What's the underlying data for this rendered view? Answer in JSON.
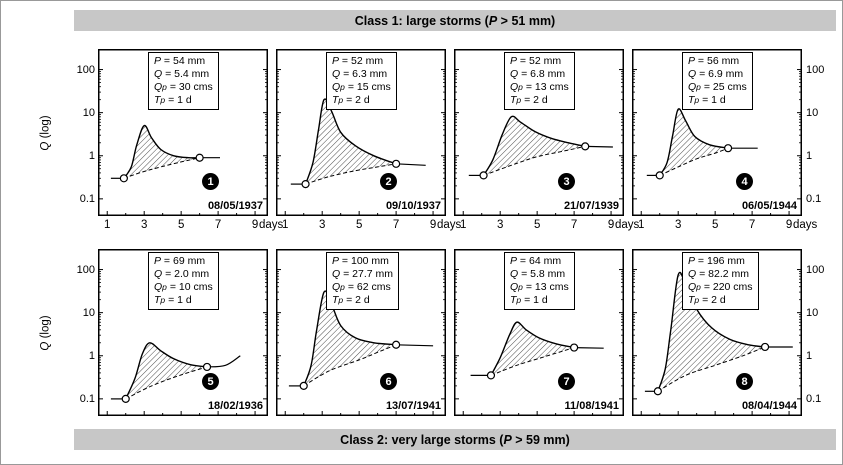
{
  "banners": {
    "top": {
      "prefix": "Class 1: large storms (",
      "var": "P",
      "suffix": " > 51 mm)"
    },
    "bottom": {
      "prefix": "Class 2: very large storms (",
      "var": "P",
      "suffix": " > 59 mm)"
    }
  },
  "axes": {
    "y_label": {
      "var": "Q",
      "suffix": " (log)"
    },
    "y_ticks": [
      "100",
      "10",
      "1",
      "0.1"
    ],
    "x_ticks": [
      "1",
      "3",
      "5",
      "7",
      "9"
    ],
    "x_unit": "days"
  },
  "chart_data": {
    "type": "line",
    "y_scale": "log",
    "x_range_days": [
      1,
      9
    ],
    "y_range": [
      0.1,
      100
    ],
    "legend": "hatched area = storm runoff between hydrograph and dashed baseflow separation; open circles mark start and end of event",
    "panels": [
      {
        "number": "1",
        "date": "08/05/1937",
        "stats": [
          {
            "main": "P",
            "sub": "",
            "value": "= 54 mm"
          },
          {
            "main": "Q",
            "sub": "",
            "value": "= 5.4 mm"
          },
          {
            "main": "Q",
            "sub": "p",
            "value": "= 30 cms"
          },
          {
            "main": "T",
            "sub": "p",
            "value": "= 1 d"
          }
        ],
        "lead": [
          [
            1.2,
            0.3
          ],
          [
            1.9,
            0.3
          ]
        ],
        "curve": [
          [
            1.9,
            0.3
          ],
          [
            2.3,
            0.55
          ],
          [
            2.6,
            1.8
          ],
          [
            3.0,
            5.0
          ],
          [
            3.4,
            2.6
          ],
          [
            3.9,
            1.4
          ],
          [
            4.6,
            1.0
          ],
          [
            5.4,
            0.9
          ],
          [
            6.0,
            0.9
          ]
        ],
        "baseflow": [
          [
            1.9,
            0.3
          ],
          [
            2.9,
            0.42
          ],
          [
            3.9,
            0.55
          ],
          [
            5.0,
            0.72
          ],
          [
            6.0,
            0.9
          ]
        ],
        "tail": [
          [
            6.0,
            0.9
          ],
          [
            7.1,
            0.9
          ]
        ]
      },
      {
        "number": "2",
        "date": "09/10/1937",
        "stats": [
          {
            "main": "P",
            "sub": "",
            "value": "= 52 mm"
          },
          {
            "main": "Q",
            "sub": "",
            "value": "= 6.3 mm"
          },
          {
            "main": "Q",
            "sub": "p",
            "value": "= 15 cms"
          },
          {
            "main": "T",
            "sub": "p",
            "value": "= 2 d"
          }
        ],
        "lead": [
          [
            1.3,
            0.22
          ],
          [
            2.1,
            0.22
          ]
        ],
        "curve": [
          [
            2.1,
            0.22
          ],
          [
            2.5,
            0.7
          ],
          [
            2.8,
            4.0
          ],
          [
            3.1,
            20.0
          ],
          [
            3.5,
            11.0
          ],
          [
            4.0,
            3.5
          ],
          [
            4.8,
            1.7
          ],
          [
            5.8,
            1.0
          ],
          [
            7.0,
            0.65
          ]
        ],
        "baseflow": [
          [
            2.1,
            0.22
          ],
          [
            3.4,
            0.33
          ],
          [
            4.8,
            0.45
          ],
          [
            6.0,
            0.55
          ],
          [
            7.0,
            0.65
          ]
        ],
        "tail": [
          [
            7.0,
            0.65
          ],
          [
            8.6,
            0.6
          ]
        ]
      },
      {
        "number": "3",
        "date": "21/07/1939",
        "stats": [
          {
            "main": "P",
            "sub": "",
            "value": "= 52 mm"
          },
          {
            "main": "Q",
            "sub": "",
            "value": "= 6.8 mm"
          },
          {
            "main": "Q",
            "sub": "p",
            "value": "= 13 cms"
          },
          {
            "main": "T",
            "sub": "p",
            "value": "= 2 d"
          }
        ],
        "lead": [
          [
            1.3,
            0.35
          ],
          [
            2.1,
            0.35
          ]
        ],
        "curve": [
          [
            2.1,
            0.35
          ],
          [
            2.6,
            0.8
          ],
          [
            3.1,
            3.0
          ],
          [
            3.6,
            8.0
          ],
          [
            4.1,
            6.0
          ],
          [
            4.9,
            3.6
          ],
          [
            5.8,
            2.5
          ],
          [
            6.7,
            2.0
          ],
          [
            7.6,
            1.65
          ]
        ],
        "baseflow": [
          [
            2.1,
            0.35
          ],
          [
            3.6,
            0.6
          ],
          [
            5.0,
            0.95
          ],
          [
            6.5,
            1.3
          ],
          [
            7.6,
            1.65
          ]
        ],
        "tail": [
          [
            7.6,
            1.65
          ],
          [
            9.1,
            1.6
          ]
        ]
      },
      {
        "number": "4",
        "date": "06/05/1944",
        "stats": [
          {
            "main": "P",
            "sub": "",
            "value": "= 56 mm"
          },
          {
            "main": "Q",
            "sub": "",
            "value": "= 6.9 mm"
          },
          {
            "main": "Q",
            "sub": "p",
            "value": "= 25 cms"
          },
          {
            "main": "T",
            "sub": "p",
            "value": "= 1 d"
          }
        ],
        "lead": [
          [
            1.3,
            0.35
          ],
          [
            2.0,
            0.35
          ]
        ],
        "curve": [
          [
            2.0,
            0.35
          ],
          [
            2.4,
            0.7
          ],
          [
            2.7,
            3.0
          ],
          [
            3.0,
            12.0
          ],
          [
            3.4,
            6.5
          ],
          [
            3.9,
            2.8
          ],
          [
            4.7,
            1.8
          ],
          [
            5.7,
            1.5
          ]
        ],
        "baseflow": [
          [
            2.0,
            0.35
          ],
          [
            3.0,
            0.55
          ],
          [
            4.0,
            0.85
          ],
          [
            5.0,
            1.15
          ],
          [
            5.7,
            1.5
          ]
        ],
        "tail": [
          [
            5.7,
            1.5
          ],
          [
            7.3,
            1.5
          ]
        ]
      },
      {
        "number": "5",
        "date": "18/02/1936",
        "stats": [
          {
            "main": "P",
            "sub": "",
            "value": "= 69 mm"
          },
          {
            "main": "Q",
            "sub": "",
            "value": "= 2.0 mm"
          },
          {
            "main": "Q",
            "sub": "p",
            "value": "= 10 cms"
          },
          {
            "main": "T",
            "sub": "p",
            "value": "= 1 d"
          }
        ],
        "lead": [
          [
            1.2,
            0.1
          ],
          [
            2.0,
            0.1
          ]
        ],
        "curve": [
          [
            2.0,
            0.1
          ],
          [
            2.5,
            0.3
          ],
          [
            2.9,
            1.1
          ],
          [
            3.3,
            2.0
          ],
          [
            3.9,
            1.3
          ],
          [
            4.6,
            0.85
          ],
          [
            5.5,
            0.62
          ],
          [
            6.4,
            0.55
          ]
        ],
        "baseflow": [
          [
            2.0,
            0.1
          ],
          [
            3.4,
            0.2
          ],
          [
            5.0,
            0.36
          ],
          [
            6.4,
            0.55
          ]
        ],
        "tail": [
          [
            6.4,
            0.55
          ],
          [
            7.4,
            0.6
          ],
          [
            8.2,
            1.0
          ]
        ]
      },
      {
        "number": "6",
        "date": "13/07/1941",
        "stats": [
          {
            "main": "P",
            "sub": "",
            "value": "= 100 mm"
          },
          {
            "main": "Q",
            "sub": "",
            "value": "= 27.7 mm"
          },
          {
            "main": "Q",
            "sub": "p",
            "value": "= 62 cms"
          },
          {
            "main": "T",
            "sub": "p",
            "value": "= 2 d"
          }
        ],
        "lead": [
          [
            1.2,
            0.2
          ],
          [
            2.0,
            0.2
          ]
        ],
        "curve": [
          [
            2.0,
            0.2
          ],
          [
            2.4,
            0.6
          ],
          [
            2.7,
            4.0
          ],
          [
            3.1,
            30.0
          ],
          [
            3.5,
            16.0
          ],
          [
            4.0,
            5.0
          ],
          [
            4.8,
            2.6
          ],
          [
            5.8,
            2.0
          ],
          [
            7.0,
            1.8
          ]
        ],
        "baseflow": [
          [
            2.0,
            0.2
          ],
          [
            3.4,
            0.45
          ],
          [
            5.0,
            0.8
          ],
          [
            6.0,
            1.2
          ],
          [
            7.0,
            1.8
          ]
        ],
        "tail": [
          [
            7.0,
            1.8
          ],
          [
            9.0,
            1.7
          ]
        ]
      },
      {
        "number": "7",
        "date": "11/08/1941",
        "stats": [
          {
            "main": "P",
            "sub": "",
            "value": "= 64 mm"
          },
          {
            "main": "Q",
            "sub": "",
            "value": "= 5.8 mm"
          },
          {
            "main": "Q",
            "sub": "p",
            "value": "= 13 cms"
          },
          {
            "main": "T",
            "sub": "p",
            "value": "= 1 d"
          }
        ],
        "lead": [
          [
            1.4,
            0.35
          ],
          [
            2.5,
            0.35
          ]
        ],
        "curve": [
          [
            2.5,
            0.35
          ],
          [
            3.0,
            0.9
          ],
          [
            3.5,
            3.0
          ],
          [
            3.9,
            6.0
          ],
          [
            4.4,
            4.0
          ],
          [
            5.1,
            2.6
          ],
          [
            6.0,
            1.9
          ],
          [
            7.0,
            1.55
          ]
        ],
        "baseflow": [
          [
            2.5,
            0.35
          ],
          [
            3.9,
            0.6
          ],
          [
            5.4,
            0.95
          ],
          [
            7.0,
            1.55
          ]
        ],
        "tail": [
          [
            7.0,
            1.55
          ],
          [
            8.6,
            1.5
          ]
        ]
      },
      {
        "number": "8",
        "date": "08/04/1944",
        "stats": [
          {
            "main": "P",
            "sub": "",
            "value": "= 196 mm"
          },
          {
            "main": "Q",
            "sub": "",
            "value": "= 82.2 mm"
          },
          {
            "main": "Q",
            "sub": "p",
            "value": "= 220 cms"
          },
          {
            "main": "T",
            "sub": "p",
            "value": "= 2 d"
          }
        ],
        "lead": [
          [
            1.2,
            0.15
          ],
          [
            1.9,
            0.15
          ]
        ],
        "curve": [
          [
            1.9,
            0.15
          ],
          [
            2.3,
            0.5
          ],
          [
            2.6,
            4.0
          ],
          [
            3.0,
            75.0
          ],
          [
            3.4,
            45.0
          ],
          [
            4.0,
            12.0
          ],
          [
            4.8,
            4.5
          ],
          [
            5.8,
            2.4
          ],
          [
            6.8,
            1.8
          ],
          [
            7.7,
            1.6
          ]
        ],
        "baseflow": [
          [
            1.9,
            0.15
          ],
          [
            3.4,
            0.35
          ],
          [
            5.0,
            0.6
          ],
          [
            6.5,
            1.0
          ],
          [
            7.7,
            1.6
          ]
        ],
        "tail": [
          [
            7.7,
            1.6
          ],
          [
            9.2,
            1.6
          ]
        ]
      }
    ]
  }
}
